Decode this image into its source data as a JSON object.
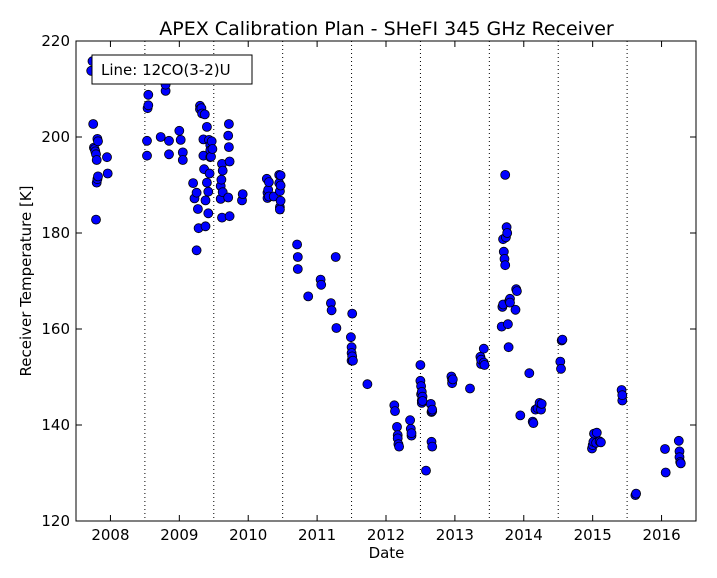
{
  "chart_data": {
    "type": "scatter",
    "title": "APEX Calibration Plan - SHeFI 345 GHz Receiver",
    "xlabel": "Date",
    "ylabel": "Receiver Temperature [K]",
    "xlim": [
      2007.5,
      2016.5
    ],
    "ylim": [
      120,
      220
    ],
    "xticks": [
      "2008",
      "2009",
      "2010",
      "2011",
      "2012",
      "2013",
      "2014",
      "2015",
      "2016"
    ],
    "yticks": [
      "120",
      "140",
      "160",
      "180",
      "200",
      "220"
    ],
    "vlines": [
      2008.5,
      2009.5,
      2010.5,
      2011.5,
      2012.5,
      2013.5,
      2014.5,
      2015.5
    ],
    "legend": {
      "placement": "top-left",
      "text": "Line: 12CO(3-2)U"
    },
    "series": [
      {
        "marker_color": "#0000ff",
        "x": [
          2007.72,
          2007.74,
          2007.75,
          2007.76,
          2007.77,
          2007.78,
          2007.79,
          2007.8,
          2007.81,
          2007.82,
          2007.95,
          2007.96,
          2007.79,
          2007.8,
          2007.81,
          2007.82,
          2008.53,
          2008.53,
          2008.54,
          2008.55,
          2008.55,
          2008.73,
          2008.8,
          2008.8,
          2008.85,
          2008.85,
          2009.0,
          2009.02,
          2009.05,
          2009.05,
          2009.2,
          2009.22,
          2009.25,
          2009.25,
          2009.27,
          2009.28,
          2009.3,
          2009.3,
          2009.32,
          2009.33,
          2009.35,
          2009.35,
          2009.36,
          2009.37,
          2009.38,
          2009.38,
          2009.4,
          2009.4,
          2009.42,
          2009.42,
          2009.43,
          2009.44,
          2009.45,
          2009.45,
          2009.45,
          2009.46,
          2009.47,
          2009.48,
          2009.6,
          2009.6,
          2009.61,
          2009.62,
          2009.62,
          2009.63,
          2009.63,
          2009.71,
          2009.72,
          2009.72,
          2009.73,
          2009.73,
          2009.71,
          2009.91,
          2009.92,
          2010.27,
          2010.28,
          2010.28,
          2010.29,
          2010.3,
          2010.3,
          2010.37,
          2010.45,
          2010.45,
          2010.46,
          2010.46,
          2010.46,
          2010.47,
          2010.47,
          2010.47,
          2010.71,
          2010.72,
          2010.72,
          2010.87,
          2011.05,
          2011.06,
          2011.2,
          2011.21,
          2011.27,
          2011.28,
          2011.49,
          2011.5,
          2011.5,
          2011.5,
          2011.51,
          2011.51,
          2011.52,
          2011.73,
          2012.12,
          2012.13,
          2012.16,
          2012.17,
          2012.17,
          2012.18,
          2012.19,
          2012.35,
          2012.36,
          2012.37,
          2012.37,
          2012.5,
          2012.5,
          2012.51,
          2012.51,
          2012.52,
          2012.52,
          2012.52,
          2012.53,
          2012.53,
          2012.58,
          2012.65,
          2012.66,
          2012.66,
          2012.67,
          2012.67,
          2012.67,
          2012.95,
          2012.96,
          2012.96,
          2012.97,
          2013.22,
          2013.37,
          2013.38,
          2013.38,
          2013.42,
          2013.42,
          2013.43,
          2013.68,
          2013.69,
          2013.7,
          2013.7,
          2013.71,
          2013.72,
          2013.73,
          2013.73,
          2013.74,
          2013.75,
          2013.76,
          2013.77,
          2013.78,
          2013.79,
          2013.8,
          2013.8,
          2013.88,
          2013.89,
          2013.9,
          2013.95,
          2014.08,
          2014.13,
          2014.14,
          2014.17,
          2014.2,
          2014.23,
          2014.25,
          2014.26,
          2014.53,
          2014.54,
          2014.55,
          2014.56,
          2014.99,
          2015.0,
          2015.01,
          2015.02,
          2015.05,
          2015.06,
          2015.1,
          2015.12,
          2015.42,
          2015.43,
          2015.43,
          2015.62,
          2015.63,
          2016.05,
          2016.06,
          2016.25,
          2016.26,
          2016.26,
          2016.27,
          2016.28
        ],
        "y": [
          213.8,
          215.8,
          202.7,
          197.8,
          197.5,
          197.0,
          196.4,
          195.2,
          199.6,
          199.1,
          195.8,
          192.4,
          182.8,
          190.5,
          191.2,
          191.8,
          196.1,
          199.2,
          206.0,
          206.6,
          208.8,
          200.0,
          209.6,
          210.9,
          199.2,
          196.4,
          201.3,
          199.4,
          196.8,
          195.2,
          190.4,
          187.2,
          188.4,
          176.4,
          185.0,
          181.0,
          206.5,
          205.8,
          206.0,
          204.9,
          199.5,
          196.1,
          193.3,
          204.7,
          186.8,
          181.4,
          202.1,
          190.5,
          184.1,
          188.6,
          199.4,
          192.4,
          195.8,
          198.3,
          197.2,
          195.9,
          199.1,
          197.5,
          189.8,
          187.1,
          191.1,
          194.4,
          183.2,
          188.5,
          193.0,
          200.3,
          197.9,
          202.7,
          194.9,
          183.5,
          187.4,
          186.8,
          188.1,
          191.3,
          188.4,
          187.3,
          189.0,
          190.6,
          187.6,
          187.6,
          192.1,
          190.4,
          188.7,
          185.4,
          184.9,
          192.0,
          189.9,
          186.7,
          177.6,
          175.0,
          172.5,
          166.8,
          170.3,
          169.2,
          165.4,
          163.9,
          175.0,
          160.2,
          158.3,
          156.2,
          155.0,
          153.4,
          163.2,
          154.3,
          153.4,
          148.5,
          144.1,
          142.9,
          139.6,
          137.9,
          137.2,
          136.0,
          135.5,
          141.0,
          139.2,
          137.8,
          138.3,
          152.5,
          149.2,
          148.1,
          146.4,
          145.1,
          144.6,
          146.9,
          145.9,
          145.0,
          130.5,
          144.4,
          142.7,
          136.5,
          135.5,
          142.9,
          143.2,
          150.1,
          149.4,
          148.7,
          149.5,
          147.6,
          154.2,
          152.7,
          153.6,
          155.9,
          153.0,
          152.5,
          160.5,
          164.6,
          178.7,
          165.1,
          176.1,
          174.6,
          173.3,
          192.1,
          179.1,
          181.2,
          180.0,
          161.0,
          156.2,
          165.9,
          166.3,
          165.5,
          164.0,
          168.3,
          167.9,
          142.0,
          150.8,
          140.7,
          140.4,
          143.2,
          143.5,
          144.6,
          143.2,
          144.4,
          153.2,
          151.7,
          157.6,
          157.8,
          135.1,
          135.8,
          136.5,
          138.2,
          136.3,
          138.4,
          136.6,
          136.4,
          147.3,
          145.1,
          146.2,
          125.4,
          125.7,
          135.0,
          130.1,
          136.7,
          134.5,
          133.3,
          132.3,
          132.0
        ]
      }
    ]
  }
}
